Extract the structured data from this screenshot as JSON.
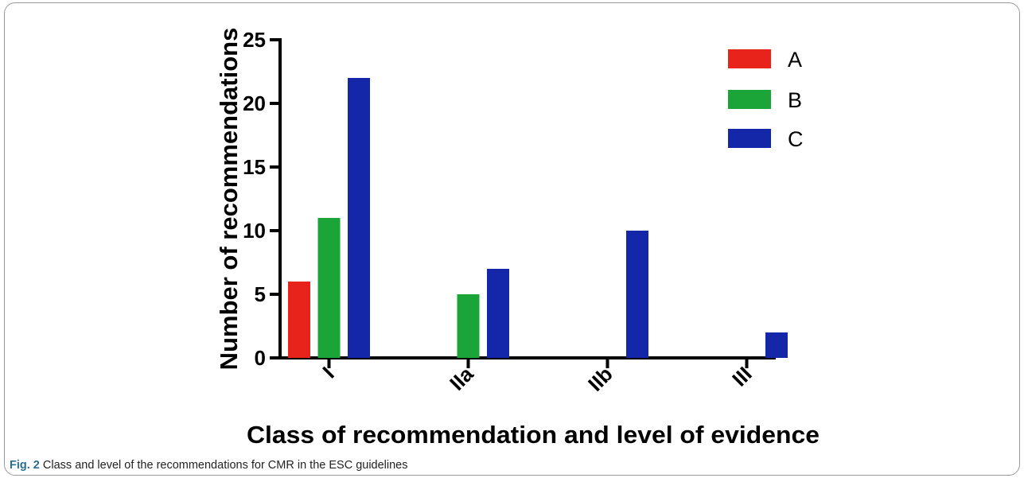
{
  "caption": {
    "prefix": "Fig. 2",
    "text": " Class and level of the recommendations for CMR in the ESC guidelines"
  },
  "chart_data": {
    "type": "bar",
    "categories": [
      "I",
      "IIa",
      "IIb",
      "III"
    ],
    "series": [
      {
        "name": "A",
        "color": "#e8231c",
        "values": [
          6,
          0,
          0,
          0
        ]
      },
      {
        "name": "B",
        "color": "#1ba539",
        "values": [
          11,
          5,
          0,
          0
        ]
      },
      {
        "name": "C",
        "color": "#1427a8",
        "values": [
          22,
          7,
          10,
          2
        ]
      }
    ],
    "xlabel": "Class of recommendation and level of evidence",
    "ylabel": "Number of recommendations",
    "ylim": [
      0,
      25
    ],
    "yticks": [
      0,
      5,
      10,
      15,
      20,
      25
    ],
    "grid": false,
    "legend_position": "top-right"
  }
}
